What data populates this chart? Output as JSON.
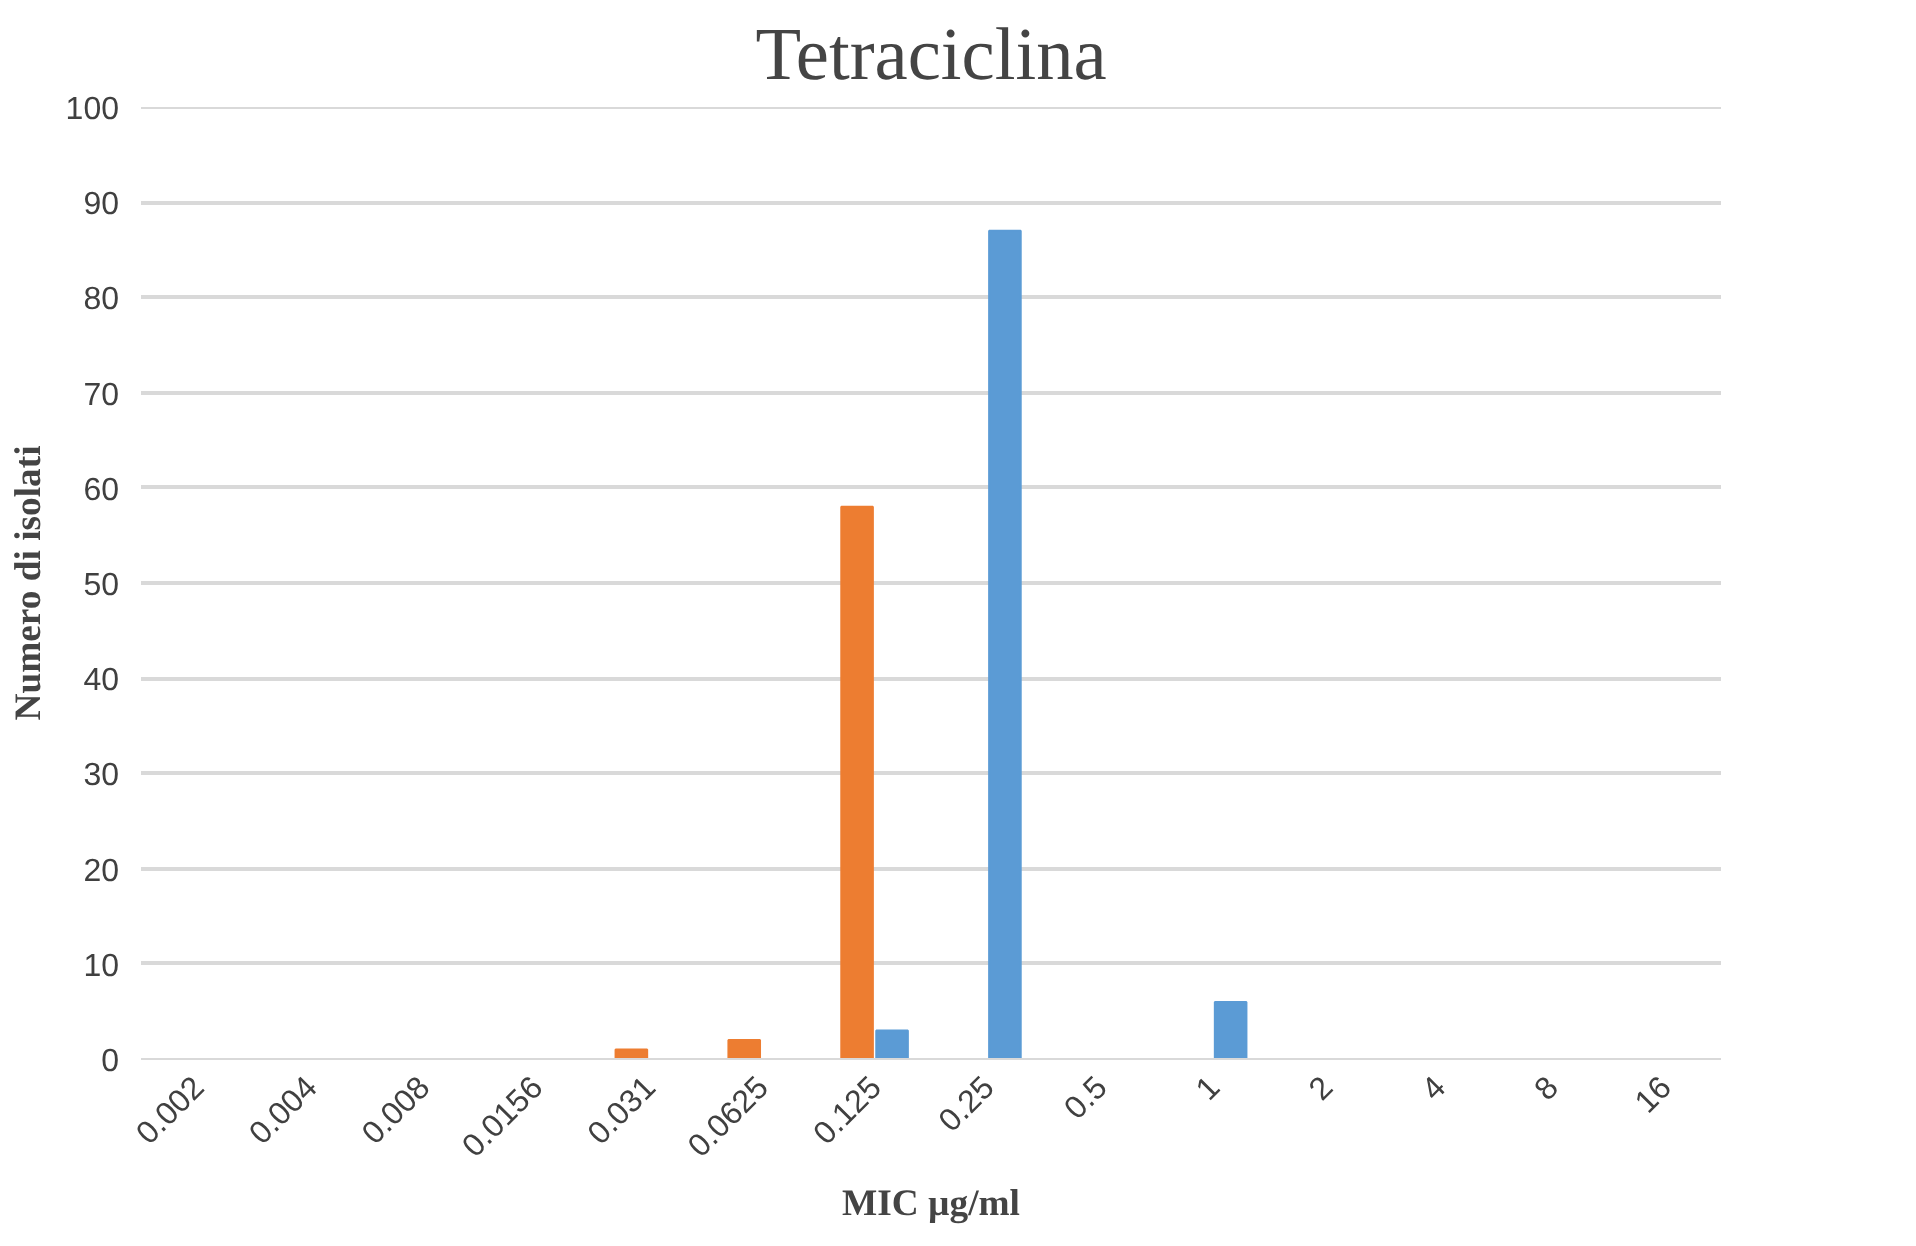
{
  "chart_data": {
    "type": "bar",
    "title": "Tetraciclina",
    "xlabel": "MIC µg/ml",
    "ylabel": "Numero di isolati",
    "categories": [
      "0.002",
      "0.004",
      "0.008",
      "0.0156",
      "0.031",
      "0.0625",
      "0.125",
      "0.25",
      "0.5",
      "1",
      "2",
      "4",
      "8",
      "16"
    ],
    "series": [
      {
        "color": "#ed7d31",
        "values": [
          0,
          0,
          0,
          0,
          1,
          2,
          58,
          0,
          0,
          0,
          0,
          0,
          0,
          0
        ]
      },
      {
        "color": "#5b9bd5",
        "values": [
          0,
          0,
          0,
          0,
          0,
          0,
          3,
          87,
          0,
          6,
          0,
          0,
          0,
          0
        ]
      }
    ],
    "ylim": [
      0,
      100
    ],
    "yticks": [
      0,
      10,
      20,
      30,
      40,
      50,
      60,
      70,
      80,
      90,
      100
    ],
    "grid": "y"
  }
}
